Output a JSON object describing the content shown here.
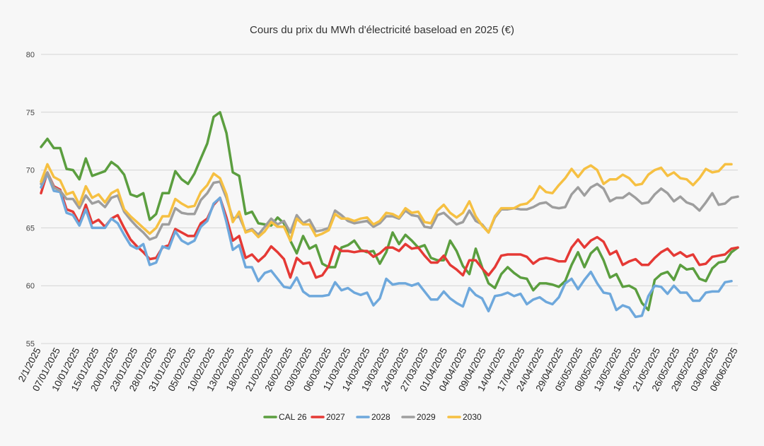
{
  "chart_data": {
    "type": "line",
    "title": "Cours du prix du MWh d'électricité baseload en 2025 (€)",
    "xlabel": "",
    "ylabel": "",
    "ylim": [
      55,
      80
    ],
    "yticks": [
      55,
      60,
      65,
      70,
      75,
      80
    ],
    "grid": true,
    "legend_position": "bottom",
    "x_tick_labels": [
      "2/1/2025",
      "07/01/2025",
      "10/01/2025",
      "15/01/2025",
      "20/01/2025",
      "23/01/2025",
      "28/01/2025",
      "31/01/2025",
      "05/02/2025",
      "10/02/2025",
      "13/02/2025",
      "18/02/2025",
      "21/02/2025",
      "26/02/2025",
      "03/03/2025",
      "06/03/2025",
      "11/03/2025",
      "14/03/2025",
      "19/03/2025",
      "24/03/2025",
      "27/03/2025",
      "01/04/2025",
      "04/04/2025",
      "09/04/2025",
      "14/04/2025",
      "17/04/2025",
      "24/04/2025",
      "29/04/2025",
      "05/05/2025",
      "08/05/2025",
      "13/05/2025",
      "16/05/2025",
      "21/05/2025",
      "26/05/2025",
      "29/05/2025",
      "03/06/2025",
      "06/06/2025"
    ],
    "series": [
      {
        "name": "CAL 26",
        "color": "#5b9e3f",
        "values": [
          72.0,
          72.7,
          71.9,
          71.9,
          70.1,
          70.0,
          69.2,
          71.0,
          69.5,
          69.7,
          69.9,
          70.7,
          70.3,
          69.6,
          67.9,
          67.7,
          68.0,
          65.7,
          66.2,
          68.0,
          68.0,
          69.9,
          69.2,
          68.8,
          69.7,
          71.0,
          72.3,
          74.6,
          75.0,
          73.2,
          69.8,
          69.5,
          66.2,
          66.4,
          65.4,
          65.3,
          65.2,
          65.9,
          65.4,
          63.9,
          62.8,
          64.3,
          63.2,
          63.5,
          61.9,
          61.6,
          61.6,
          63.3,
          63.5,
          63.9,
          63.1,
          62.9,
          63.0,
          61.9,
          62.9,
          64.6,
          63.6,
          64.4,
          63.9,
          63.3,
          63.5,
          62.4,
          62.2,
          62.2,
          63.9,
          63.0,
          61.7,
          61.0,
          63.2,
          61.6,
          60.2,
          59.8,
          61.0,
          61.6,
          61.1,
          60.7,
          60.6,
          59.6,
          60.2,
          60.2,
          60.1,
          59.9,
          60.4,
          61.8,
          62.9,
          61.6,
          62.8,
          63.3,
          62.2,
          60.7,
          61.0,
          59.9,
          60.0,
          59.7,
          58.5,
          57.9,
          60.5,
          61.0,
          61.2,
          60.5,
          61.8,
          61.4,
          61.5,
          60.6,
          60.4,
          61.5,
          62.0,
          62.1,
          62.9,
          63.3
        ]
      },
      {
        "name": "2027",
        "color": "#e53935",
        "values": [
          68.0,
          69.8,
          68.6,
          68.3,
          66.6,
          66.4,
          65.4,
          67.0,
          65.4,
          65.7,
          65.1,
          65.8,
          66.1,
          65.0,
          64.0,
          63.4,
          62.9,
          62.3,
          62.4,
          63.3,
          63.5,
          64.9,
          64.6,
          64.3,
          64.3,
          65.4,
          65.8,
          67.0,
          67.6,
          65.9,
          63.9,
          64.3,
          62.4,
          62.7,
          62.1,
          62.6,
          63.4,
          62.9,
          62.3,
          60.7,
          62.4,
          61.9,
          62.0,
          60.7,
          60.9,
          61.7,
          63.4,
          63.0,
          63.0,
          62.9,
          63.0,
          63.0,
          62.5,
          62.8,
          63.3,
          63.3,
          63.0,
          63.6,
          63.2,
          63.3,
          62.6,
          62.0,
          62.0,
          62.6,
          61.8,
          61.4,
          60.9,
          62.2,
          62.2,
          61.5,
          60.9,
          61.6,
          62.6,
          62.7,
          62.7,
          62.7,
          62.5,
          61.9,
          62.3,
          62.4,
          62.3,
          62.1,
          62.1,
          63.3,
          64.0,
          63.3,
          63.9,
          64.2,
          63.8,
          62.7,
          63.0,
          61.8,
          62.1,
          62.3,
          61.8,
          61.8,
          62.4,
          62.9,
          63.2,
          62.6,
          62.9,
          62.5,
          62.7,
          61.8,
          61.9,
          62.5,
          62.6,
          62.7,
          63.2,
          63.3
        ]
      },
      {
        "name": "2028",
        "color": "#6ea8dc",
        "values": [
          68.5,
          69.7,
          68.2,
          68.1,
          66.3,
          66.1,
          65.2,
          66.6,
          65.0,
          65.0,
          65.0,
          65.8,
          65.4,
          64.4,
          63.5,
          63.2,
          63.6,
          61.8,
          62.0,
          63.4,
          63.2,
          64.7,
          63.9,
          63.6,
          63.9,
          65.1,
          65.6,
          67.1,
          67.6,
          65.5,
          63.1,
          63.5,
          61.6,
          61.6,
          60.4,
          61.1,
          61.3,
          60.6,
          59.9,
          59.8,
          60.7,
          59.5,
          59.1,
          59.1,
          59.1,
          59.2,
          60.3,
          59.6,
          59.8,
          59.4,
          59.2,
          59.4,
          58.3,
          58.9,
          60.6,
          60.1,
          60.2,
          60.2,
          60.0,
          60.2,
          59.5,
          58.8,
          58.8,
          59.5,
          58.9,
          58.5,
          58.2,
          59.8,
          59.2,
          58.9,
          57.8,
          59.1,
          59.2,
          59.4,
          59.1,
          59.3,
          58.4,
          58.8,
          59.0,
          58.6,
          58.4,
          59.0,
          60.2,
          60.6,
          59.7,
          60.5,
          61.2,
          60.2,
          59.4,
          59.3,
          57.9,
          58.3,
          58.1,
          57.3,
          57.4,
          59.1,
          60.0,
          59.9,
          59.3,
          60.0,
          59.4,
          59.4,
          58.7,
          58.7,
          59.4,
          59.5,
          59.5,
          60.3,
          60.4
        ]
      },
      {
        "name": "2029",
        "color": "#9e9e9e",
        "values": [
          68.8,
          69.8,
          68.5,
          68.2,
          67.5,
          67.5,
          66.7,
          67.8,
          67.1,
          67.3,
          66.8,
          67.6,
          67.8,
          66.4,
          65.7,
          65.1,
          64.6,
          64.0,
          64.2,
          65.3,
          65.3,
          66.7,
          66.3,
          66.2,
          66.2,
          67.4,
          68.0,
          68.9,
          69.0,
          67.6,
          65.8,
          66.0,
          64.7,
          64.9,
          64.4,
          65.1,
          65.8,
          65.3,
          65.6,
          64.6,
          66.1,
          65.4,
          65.7,
          64.7,
          64.8,
          65.0,
          66.5,
          66.1,
          65.6,
          65.4,
          65.5,
          65.6,
          65.1,
          65.4,
          66.0,
          66.0,
          65.8,
          66.5,
          66.1,
          66.0,
          65.1,
          65.0,
          66.1,
          66.3,
          65.8,
          65.3,
          65.5,
          66.5,
          65.6,
          65.3,
          64.6,
          65.9,
          66.6,
          66.6,
          66.7,
          66.6,
          66.6,
          66.8,
          67.1,
          67.2,
          66.8,
          66.7,
          66.8,
          67.9,
          68.5,
          67.8,
          68.5,
          68.8,
          68.4,
          67.3,
          67.6,
          67.6,
          68.0,
          67.6,
          67.1,
          67.2,
          67.9,
          68.4,
          68.0,
          67.3,
          67.7,
          67.2,
          67.0,
          66.5,
          67.2,
          68.0,
          67.0,
          67.1,
          67.6,
          67.7
        ]
      },
      {
        "name": "2030",
        "color": "#f6c042",
        "values": [
          69.0,
          70.5,
          69.4,
          69.1,
          67.9,
          68.1,
          67.0,
          68.6,
          67.6,
          67.9,
          67.2,
          68.0,
          68.3,
          66.6,
          66.0,
          65.5,
          65.0,
          64.5,
          65.0,
          66.0,
          66.0,
          67.5,
          67.1,
          66.8,
          66.9,
          68.1,
          68.7,
          69.7,
          69.3,
          67.9,
          65.5,
          66.4,
          64.6,
          64.8,
          64.2,
          64.7,
          65.5,
          65.1,
          65.1,
          63.9,
          65.8,
          65.3,
          65.3,
          64.3,
          64.5,
          64.8,
          66.2,
          65.8,
          65.8,
          65.6,
          65.8,
          65.9,
          65.3,
          65.6,
          66.3,
          66.2,
          65.9,
          66.7,
          66.3,
          66.4,
          65.5,
          65.4,
          66.5,
          67.0,
          66.3,
          65.9,
          66.3,
          67.3,
          66.0,
          65.2,
          64.6,
          66.0,
          66.7,
          66.7,
          66.7,
          67.0,
          67.1,
          67.6,
          68.6,
          68.1,
          68.0,
          68.7,
          69.3,
          70.1,
          69.4,
          70.1,
          70.4,
          70.0,
          68.8,
          69.2,
          69.2,
          69.6,
          69.3,
          68.7,
          68.8,
          69.6,
          70.0,
          70.2,
          69.5,
          69.8,
          69.3,
          69.2,
          68.7,
          69.3,
          70.1,
          69.8,
          69.9,
          70.5,
          70.5
        ]
      }
    ]
  }
}
